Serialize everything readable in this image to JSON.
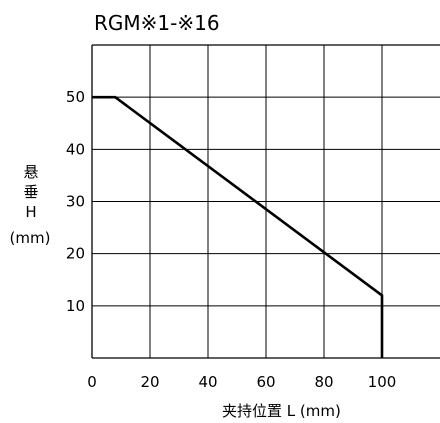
{
  "chart_data": {
    "type": "line",
    "title": "RGM※1-※16",
    "xlabel": "夹持位置 L (mm)",
    "ylabel": [
      "悬",
      "垂",
      "H",
      "(mm)"
    ],
    "xlim": [
      0,
      120
    ],
    "ylim": [
      0,
      60
    ],
    "x_ticks": [
      0,
      20,
      40,
      60,
      80,
      100
    ],
    "y_ticks": [
      10,
      20,
      30,
      40,
      50
    ],
    "grid": true,
    "series": [
      {
        "x": [
          0,
          8,
          100,
          100
        ],
        "y": [
          50,
          50,
          12,
          0
        ]
      }
    ]
  }
}
